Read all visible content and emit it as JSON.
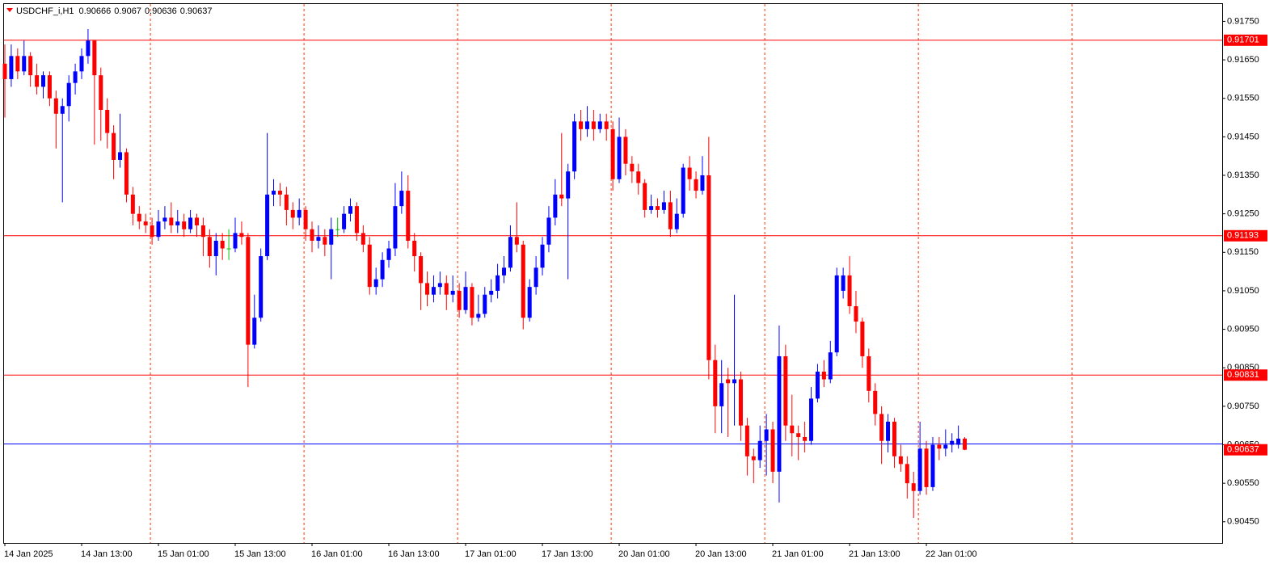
{
  "chart_data": {
    "type": "candlestick",
    "symbol": "USDCHF_i,H1",
    "up_color": "#0000ff",
    "down_color": "#ff0000",
    "doji_color": "#00c000",
    "level_color": "#ff0000",
    "levels": [
      0.91701,
      0.91193,
      0.90831
    ],
    "bid_color": "#0000ff",
    "bid": 0.90652,
    "ylim": [
      0.90395,
      0.91795
    ],
    "yticks": [
      {
        "value": 0.9175,
        "label": "0.91750"
      },
      {
        "value": 0.9165,
        "label": "0.91650"
      },
      {
        "value": 0.9155,
        "label": "0.91550"
      },
      {
        "value": 0.9145,
        "label": "0.91450"
      },
      {
        "value": 0.9135,
        "label": "0.91350"
      },
      {
        "value": 0.9125,
        "label": "0.91250"
      },
      {
        "value": 0.9115,
        "label": "0.91150"
      },
      {
        "value": 0.9105,
        "label": "0.91050"
      },
      {
        "value": 0.9095,
        "label": "0.90950"
      },
      {
        "value": 0.9085,
        "label": "0.90850"
      },
      {
        "value": 0.9075,
        "label": "0.90750"
      },
      {
        "value": 0.9065,
        "label": "0.90650"
      },
      {
        "value": 0.9055,
        "label": "0.90550"
      },
      {
        "value": 0.9045,
        "label": "0.90450"
      }
    ],
    "categories": [
      "14 Jan 2025",
      null,
      null,
      null,
      null,
      null,
      null,
      null,
      null,
      null,
      null,
      null,
      "14 Jan 13:00",
      null,
      null,
      null,
      null,
      null,
      null,
      null,
      null,
      null,
      null,
      null,
      "15 Jan 01:00",
      null,
      null,
      null,
      null,
      null,
      null,
      null,
      null,
      null,
      null,
      null,
      "15 Jan 13:00",
      null,
      null,
      null,
      null,
      null,
      null,
      null,
      null,
      null,
      null,
      null,
      "16 Jan 01:00",
      null,
      null,
      null,
      null,
      null,
      null,
      null,
      null,
      null,
      null,
      null,
      "16 Jan 13:00",
      null,
      null,
      null,
      null,
      null,
      null,
      null,
      null,
      null,
      null,
      null,
      "17 Jan 01:00",
      null,
      null,
      null,
      null,
      null,
      null,
      null,
      null,
      null,
      null,
      null,
      "17 Jan 13:00",
      null,
      null,
      null,
      null,
      null,
      null,
      null,
      null,
      null,
      null,
      null,
      "20 Jan 01:00",
      null,
      null,
      null,
      null,
      null,
      null,
      null,
      null,
      null,
      null,
      null,
      "20 Jan 13:00",
      null,
      null,
      null,
      null,
      null,
      null,
      null,
      null,
      null,
      null,
      null,
      "21 Jan 01:00",
      null,
      null,
      null,
      null,
      null,
      null,
      null,
      null,
      null,
      null,
      null,
      "21 Jan 13:00",
      null,
      null,
      null,
      null,
      null,
      null,
      null,
      null,
      null,
      null,
      null,
      "22 Jan 01:00",
      null,
      null,
      null,
      null,
      null,
      null
    ],
    "ohlc": [
      [
        0.9164,
        0.9169,
        0.915,
        0.916
      ],
      [
        0.916,
        0.9169,
        0.9158,
        0.9166
      ],
      [
        0.9166,
        0.9168,
        0.916,
        0.9162
      ],
      [
        0.9162,
        0.917,
        0.9161,
        0.9166
      ],
      [
        0.9166,
        0.9167,
        0.9158,
        0.9161
      ],
      [
        0.9161,
        0.9164,
        0.9156,
        0.9158
      ],
      [
        0.9158,
        0.9162,
        0.9155,
        0.9161
      ],
      [
        0.9161,
        0.9162,
        0.9153,
        0.9155
      ],
      [
        0.9155,
        0.9157,
        0.9142,
        0.9151
      ],
      [
        0.9151,
        0.9155,
        0.9128,
        0.9153
      ],
      [
        0.9153,
        0.9161,
        0.9149,
        0.9159
      ],
      [
        0.9159,
        0.9164,
        0.9156,
        0.9162
      ],
      [
        0.9162,
        0.9168,
        0.916,
        0.9166
      ],
      [
        0.9166,
        0.9173,
        0.9164,
        0.917
      ],
      [
        0.917,
        0.917,
        0.9143,
        0.9161
      ],
      [
        0.9161,
        0.9163,
        0.9144,
        0.9152
      ],
      [
        0.9152,
        0.9155,
        0.9142,
        0.9146
      ],
      [
        0.9146,
        0.9148,
        0.9134,
        0.9139
      ],
      [
        0.9139,
        0.9151,
        0.9137,
        0.9141
      ],
      [
        0.9141,
        0.9142,
        0.9128,
        0.913
      ],
      [
        0.913,
        0.9132,
        0.9122,
        0.9125
      ],
      [
        0.9125,
        0.9127,
        0.9121,
        0.9123
      ],
      [
        0.9123,
        0.9125,
        0.912,
        0.9122
      ],
      [
        0.9122,
        0.9124,
        0.9117,
        0.9119
      ],
      [
        0.9119,
        0.9126,
        0.9118,
        0.9123
      ],
      [
        0.9123,
        0.9127,
        0.9121,
        0.9124
      ],
      [
        0.9124,
        0.9128,
        0.912,
        0.9122
      ],
      [
        0.9122,
        0.9126,
        0.912,
        0.9123
      ],
      [
        0.9123,
        0.9125,
        0.9119,
        0.9121
      ],
      [
        0.9121,
        0.9126,
        0.912,
        0.9124
      ],
      [
        0.9124,
        0.9125,
        0.9119,
        0.9122
      ],
      [
        0.9122,
        0.9124,
        0.9114,
        0.9119
      ],
      [
        0.9119,
        0.9121,
        0.9111,
        0.9114
      ],
      [
        0.9114,
        0.912,
        0.9109,
        0.9118
      ],
      [
        0.9118,
        0.912,
        0.9113,
        0.9116
      ],
      [
        0.9116,
        0.9121,
        0.9113,
        0.9116
      ],
      [
        0.9116,
        0.9124,
        0.9115,
        0.912
      ],
      [
        0.912,
        0.9123,
        0.9117,
        0.9119
      ],
      [
        0.9119,
        0.912,
        0.908,
        0.9091
      ],
      [
        0.9091,
        0.9104,
        0.909,
        0.9098
      ],
      [
        0.9098,
        0.9116,
        0.9097,
        0.9114
      ],
      [
        0.9114,
        0.9146,
        0.9113,
        0.913
      ],
      [
        0.913,
        0.9134,
        0.9127,
        0.9131
      ],
      [
        0.9131,
        0.9133,
        0.9127,
        0.913
      ],
      [
        0.913,
        0.9132,
        0.9122,
        0.9126
      ],
      [
        0.9126,
        0.9128,
        0.9121,
        0.9124
      ],
      [
        0.9124,
        0.9129,
        0.9122,
        0.9126
      ],
      [
        0.9126,
        0.9127,
        0.9118,
        0.9121
      ],
      [
        0.9121,
        0.9123,
        0.9115,
        0.9118
      ],
      [
        0.9118,
        0.9122,
        0.9116,
        0.9119
      ],
      [
        0.9119,
        0.9121,
        0.9114,
        0.9117
      ],
      [
        0.9117,
        0.9124,
        0.9108,
        0.9121
      ],
      [
        0.9121,
        0.9124,
        0.9119,
        0.9121
      ],
      [
        0.9121,
        0.9127,
        0.912,
        0.9125
      ],
      [
        0.9125,
        0.9129,
        0.9123,
        0.9127
      ],
      [
        0.9127,
        0.9128,
        0.9118,
        0.912
      ],
      [
        0.912,
        0.9122,
        0.9115,
        0.9117
      ],
      [
        0.9117,
        0.9119,
        0.9104,
        0.9106
      ],
      [
        0.9106,
        0.9111,
        0.9104,
        0.9108
      ],
      [
        0.9108,
        0.9115,
        0.9106,
        0.9113
      ],
      [
        0.9113,
        0.9118,
        0.9111,
        0.9116
      ],
      [
        0.9116,
        0.9133,
        0.9114,
        0.9127
      ],
      [
        0.9127,
        0.9136,
        0.9125,
        0.9131
      ],
      [
        0.9131,
        0.9135,
        0.9116,
        0.9118
      ],
      [
        0.9118,
        0.912,
        0.911,
        0.9114
      ],
      [
        0.9114,
        0.9115,
        0.91,
        0.9107
      ],
      [
        0.9107,
        0.911,
        0.9101,
        0.9104
      ],
      [
        0.9104,
        0.9109,
        0.9102,
        0.9106
      ],
      [
        0.9106,
        0.911,
        0.9104,
        0.9107
      ],
      [
        0.9107,
        0.9109,
        0.91,
        0.9104
      ],
      [
        0.9104,
        0.9109,
        0.9102,
        0.9105
      ],
      [
        0.9105,
        0.9107,
        0.9098,
        0.91
      ],
      [
        0.91,
        0.911,
        0.9099,
        0.9106
      ],
      [
        0.9106,
        0.9107,
        0.9096,
        0.9098
      ],
      [
        0.9098,
        0.9104,
        0.9097,
        0.9099
      ],
      [
        0.9099,
        0.9106,
        0.9098,
        0.9104
      ],
      [
        0.9104,
        0.9108,
        0.9102,
        0.9105
      ],
      [
        0.9105,
        0.9112,
        0.9103,
        0.9109
      ],
      [
        0.9109,
        0.9114,
        0.9107,
        0.9111
      ],
      [
        0.9111,
        0.9122,
        0.911,
        0.9119
      ],
      [
        0.9119,
        0.9128,
        0.9115,
        0.9117
      ],
      [
        0.9117,
        0.9118,
        0.9095,
        0.9098
      ],
      [
        0.9098,
        0.9108,
        0.9097,
        0.9106
      ],
      [
        0.9106,
        0.9114,
        0.9104,
        0.9111
      ],
      [
        0.9111,
        0.9119,
        0.9109,
        0.9117
      ],
      [
        0.9117,
        0.9127,
        0.9115,
        0.9124
      ],
      [
        0.9124,
        0.9134,
        0.9122,
        0.913
      ],
      [
        0.913,
        0.9146,
        0.9127,
        0.9129
      ],
      [
        0.9129,
        0.9138,
        0.9108,
        0.9136
      ],
      [
        0.9136,
        0.9151,
        0.9134,
        0.9149
      ],
      [
        0.9149,
        0.9152,
        0.9144,
        0.9147
      ],
      [
        0.9147,
        0.9153,
        0.9145,
        0.9149
      ],
      [
        0.9149,
        0.9152,
        0.9144,
        0.9147
      ],
      [
        0.9147,
        0.9151,
        0.9146,
        0.9149
      ],
      [
        0.9149,
        0.9151,
        0.9144,
        0.9147
      ],
      [
        0.9147,
        0.9149,
        0.9131,
        0.9134
      ],
      [
        0.9134,
        0.915,
        0.9133,
        0.9145
      ],
      [
        0.9145,
        0.9147,
        0.9135,
        0.9138
      ],
      [
        0.9138,
        0.914,
        0.9133,
        0.9136
      ],
      [
        0.9136,
        0.9138,
        0.913,
        0.9133
      ],
      [
        0.9133,
        0.9134,
        0.9124,
        0.9126
      ],
      [
        0.9126,
        0.913,
        0.9125,
        0.9127
      ],
      [
        0.9127,
        0.9129,
        0.9124,
        0.9126
      ],
      [
        0.9126,
        0.9131,
        0.9125,
        0.9128
      ],
      [
        0.9128,
        0.9131,
        0.9119,
        0.9121
      ],
      [
        0.9121,
        0.9129,
        0.912,
        0.9125
      ],
      [
        0.9125,
        0.9138,
        0.9124,
        0.9137
      ],
      [
        0.9137,
        0.914,
        0.9131,
        0.9134
      ],
      [
        0.9134,
        0.9136,
        0.9129,
        0.9131
      ],
      [
        0.9131,
        0.914,
        0.913,
        0.9135
      ],
      [
        0.9135,
        0.9145,
        0.9082,
        0.9087
      ],
      [
        0.9087,
        0.9091,
        0.9068,
        0.9075
      ],
      [
        0.9075,
        0.9087,
        0.9068,
        0.9081
      ],
      [
        0.9082,
        0.9085,
        0.9067,
        0.9081
      ],
      [
        0.9081,
        0.9104,
        0.907,
        0.9082
      ],
      [
        0.9082,
        0.9084,
        0.9066,
        0.907
      ],
      [
        0.907,
        0.9072,
        0.9057,
        0.9062
      ],
      [
        0.9062,
        0.9064,
        0.9055,
        0.9061
      ],
      [
        0.9061,
        0.907,
        0.9059,
        0.9066
      ],
      [
        0.9066,
        0.9073,
        0.9057,
        0.9069
      ],
      [
        0.9069,
        0.9071,
        0.9055,
        0.9058
      ],
      [
        0.9058,
        0.9096,
        0.905,
        0.9088
      ],
      [
        0.9088,
        0.9091,
        0.9066,
        0.907
      ],
      [
        0.907,
        0.9078,
        0.9062,
        0.9068
      ],
      [
        0.9068,
        0.907,
        0.9061,
        0.9067
      ],
      [
        0.9067,
        0.9071,
        0.9063,
        0.9066
      ],
      [
        0.9066,
        0.908,
        0.9065,
        0.9077
      ],
      [
        0.9077,
        0.9086,
        0.9076,
        0.9084
      ],
      [
        0.9084,
        0.9087,
        0.908,
        0.9082
      ],
      [
        0.9082,
        0.9092,
        0.9081,
        0.9089
      ],
      [
        0.9089,
        0.9111,
        0.9088,
        0.9109
      ],
      [
        0.9105,
        0.9111,
        0.9103,
        0.9109
      ],
      [
        0.9109,
        0.9114,
        0.9099,
        0.9101
      ],
      [
        0.9101,
        0.9105,
        0.9094,
        0.9097
      ],
      [
        0.9097,
        0.9098,
        0.9085,
        0.9088
      ],
      [
        0.9088,
        0.909,
        0.9076,
        0.9079
      ],
      [
        0.9079,
        0.9081,
        0.907,
        0.9073
      ],
      [
        0.9073,
        0.9075,
        0.906,
        0.9066
      ],
      [
        0.9066,
        0.9073,
        0.9063,
        0.9071
      ],
      [
        0.9071,
        0.9072,
        0.9059,
        0.9062
      ],
      [
        0.9062,
        0.9065,
        0.9058,
        0.906
      ],
      [
        0.906,
        0.9062,
        0.9051,
        0.9055
      ],
      [
        0.9055,
        0.9058,
        0.9046,
        0.9053
      ],
      [
        0.9053,
        0.9071,
        0.9052,
        0.9064
      ],
      [
        0.9064,
        0.9066,
        0.9052,
        0.9054
      ],
      [
        0.9054,
        0.9067,
        0.9053,
        0.9065
      ],
      [
        0.9065,
        0.9067,
        0.9061,
        0.9064
      ],
      [
        0.9064,
        0.9069,
        0.9062,
        0.9065
      ],
      [
        0.9065,
        0.9068,
        0.9063,
        0.9066
      ],
      [
        0.9065,
        0.907,
        0.9064,
        0.90666
      ],
      [
        0.90666,
        0.9067,
        0.90636,
        0.90637
      ]
    ]
  }
}
